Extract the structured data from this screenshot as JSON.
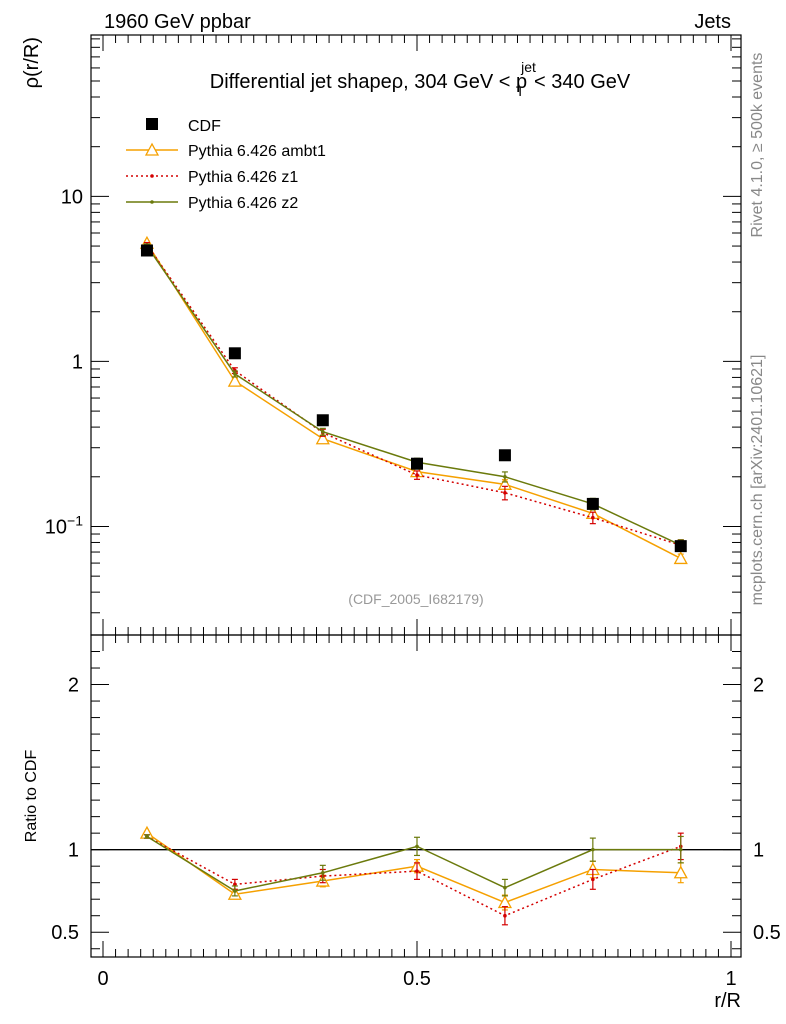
{
  "header": {
    "left": "1960 GeV ppbar",
    "right": "Jets"
  },
  "side": {
    "rivet": "Rivet 4.1.0, ≥ 500k events",
    "mcplots": "mcplots.cern.ch [arXiv:2401.10621]"
  },
  "watermark": "(CDF_2005_I682179)",
  "chart_data": [
    {
      "type": "line",
      "panel": "main",
      "title_main": "Differential jet shapeρ, 304 GeV < p",
      "title_sup": "jet",
      "title_sub": "T",
      "title_end": " < 340 GeV",
      "ylabel": "ρ(r/R)",
      "xlabel": "r/R",
      "yscale": "log",
      "xlim": [
        0,
        1
      ],
      "ylim": [
        0.022,
        95
      ],
      "yticks": [
        {
          "value": 10,
          "label": "10"
        },
        {
          "value": 1,
          "label": "1"
        }
      ],
      "ytick_exp": {
        "value": 0.1,
        "base": "10",
        "exp": "−1"
      },
      "xticks": [
        0,
        0.5,
        1
      ],
      "xticklabels": [
        "0",
        "0.5",
        "1"
      ],
      "x": [
        0.07,
        0.21,
        0.35,
        0.5,
        0.64,
        0.78,
        0.92
      ],
      "data": {
        "name": "CDF",
        "color": "#000000",
        "values": [
          4.7,
          1.12,
          0.44,
          0.24,
          0.27,
          0.137,
          0.076
        ]
      },
      "series": [
        {
          "name": "Pythia 6.426 ambt1",
          "color": "#f5a000",
          "style": "solid",
          "marker": "triangle",
          "values": [
            5.2,
            0.76,
            0.34,
            0.215,
            0.18,
            0.12,
            0.064
          ],
          "errors": [
            0.15,
            0.03,
            0.015,
            0.01,
            0.012,
            0.007,
            0.004
          ]
        },
        {
          "name": "Pythia 6.426 z1",
          "color": "#d40000",
          "style": "dotted",
          "marker": "dot",
          "values": [
            5.1,
            0.88,
            0.37,
            0.205,
            0.16,
            0.113,
            0.077
          ],
          "errors": [
            0.15,
            0.035,
            0.018,
            0.012,
            0.015,
            0.009,
            0.006
          ]
        },
        {
          "name": "Pythia 6.426 z2",
          "color": "#6b7a0c",
          "style": "solid",
          "marker": "dot",
          "values": [
            5.0,
            0.84,
            0.375,
            0.245,
            0.2,
            0.137,
            0.077
          ],
          "errors": [
            0.15,
            0.035,
            0.018,
            0.014,
            0.014,
            0.011,
            0.006
          ]
        }
      ]
    },
    {
      "type": "line",
      "panel": "ratio",
      "ylabel": "Ratio to CDF",
      "ylim": [
        0.35,
        2.3
      ],
      "yticks": [
        0.5,
        1,
        2
      ],
      "yticklabels": [
        "0.5",
        "1",
        "2"
      ],
      "reference": 1,
      "x": [
        0.07,
        0.21,
        0.35,
        0.5,
        0.64,
        0.78,
        0.92
      ],
      "series": [
        {
          "name": "Pythia 6.426 ambt1",
          "color": "#f5a000",
          "style": "solid",
          "marker": "triangle",
          "values": [
            1.1,
            0.73,
            0.81,
            0.9,
            0.68,
            0.88,
            0.86
          ],
          "errors": [
            0.01,
            0.025,
            0.035,
            0.04,
            0.045,
            0.05,
            0.06
          ]
        },
        {
          "name": "Pythia 6.426 z1",
          "color": "#d40000",
          "style": "dotted",
          "marker": "dot",
          "values": [
            1.08,
            0.79,
            0.84,
            0.87,
            0.6,
            0.82,
            1.02
          ],
          "errors": [
            0.01,
            0.03,
            0.04,
            0.05,
            0.055,
            0.06,
            0.08
          ]
        },
        {
          "name": "Pythia 6.426 z2",
          "color": "#6b7a0c",
          "style": "solid",
          "marker": "dot",
          "values": [
            1.08,
            0.75,
            0.86,
            1.02,
            0.77,
            1.0,
            1.0
          ],
          "errors": [
            0.01,
            0.03,
            0.045,
            0.055,
            0.05,
            0.07,
            0.08
          ]
        }
      ]
    }
  ]
}
